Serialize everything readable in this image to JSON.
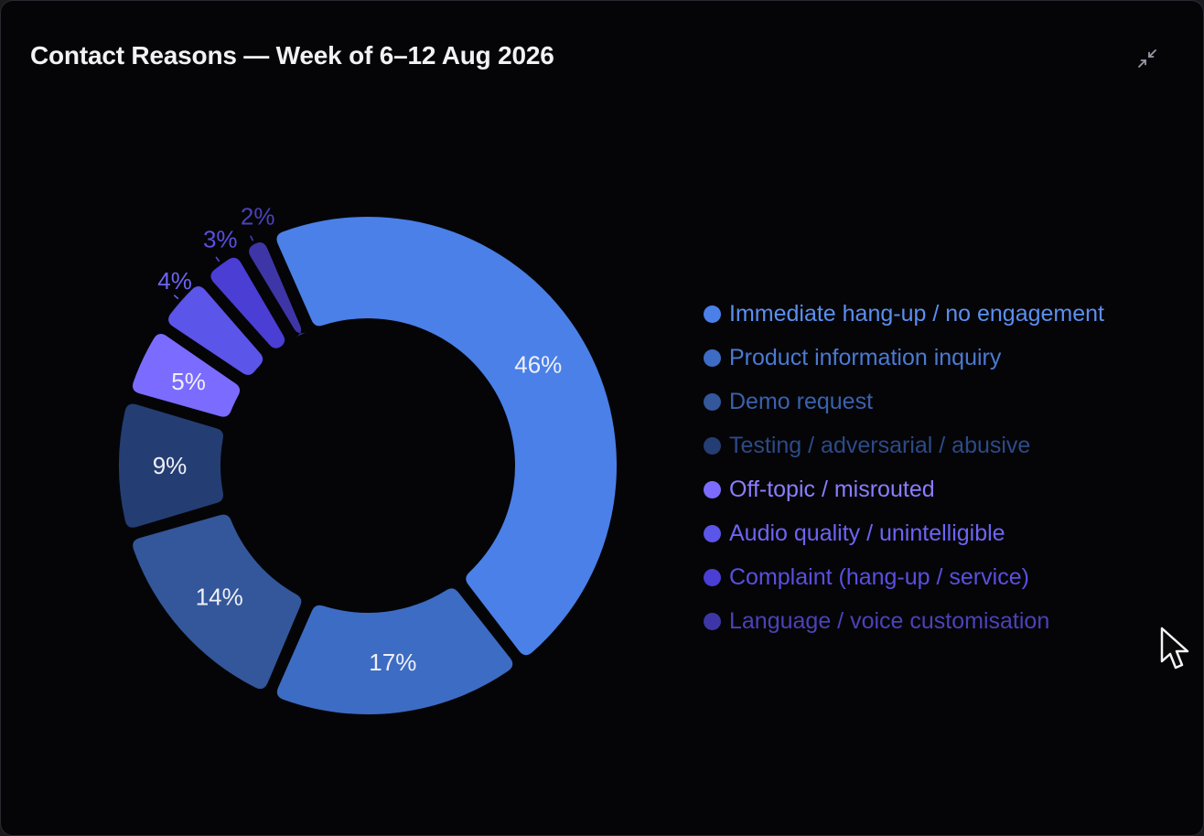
{
  "header": {
    "title": "Contact Reasons — Week of 6–12 Aug 2026",
    "collapse_icon": "collapse-arrows-icon"
  },
  "chart_data": {
    "type": "pie",
    "variant": "donut",
    "title": "Contact Reasons — Week of 6–12 Aug 2026",
    "categories": [
      "Immediate hang-up / no engagement",
      "Product information inquiry",
      "Demo request",
      "Testing / adversarial / abusive",
      "Off-topic / misrouted",
      "Audio quality / unintelligible",
      "Complaint (hang-up / service)",
      "Language / voice customisation"
    ],
    "values": [
      46,
      17,
      14,
      9,
      5,
      4,
      3,
      2
    ],
    "value_labels": [
      "46%",
      "17%",
      "14%",
      "9%",
      "5%",
      "4%",
      "3%",
      "2%"
    ],
    "unit": "%",
    "colors": [
      "#4a80e8",
      "#3d6cc4",
      "#33579a",
      "#243e73",
      "#7b6cff",
      "#5c55ea",
      "#4a3ed4",
      "#3e36a6"
    ],
    "label_colors": [
      "#5b8ff0",
      "#4a7ad2",
      "#3a61ad",
      "#2d4a86",
      "#8a7dff",
      "#6d64f3",
      "#5a4fe0",
      "#4b42b8"
    ],
    "legend_placement": "right"
  }
}
